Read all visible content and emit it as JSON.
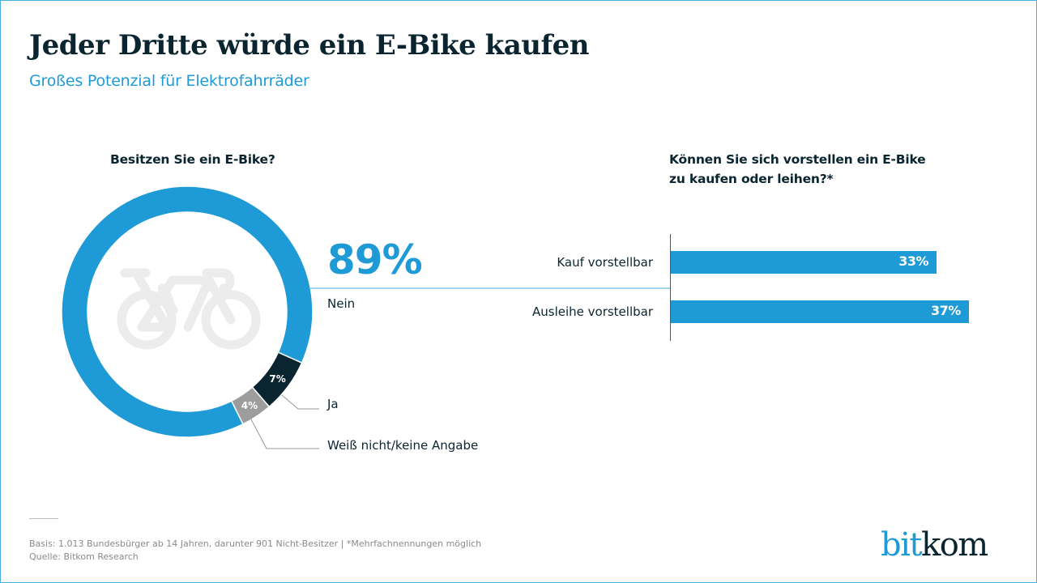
{
  "header": {
    "title": "Jeder Dritte würde ein E-Bike kaufen",
    "subtitle": "Großes Potenzial für Elektrofahrräder"
  },
  "colors": {
    "accent": "#1e9ad6",
    "dark": "#0b2530",
    "gray": "#9d9d9d",
    "icon": "#ececec"
  },
  "chart_data": [
    {
      "type": "pie",
      "variant": "donut",
      "title": "Besitzen Sie ein E-Bike?",
      "center_icon": "bicycle-icon",
      "slices": [
        {
          "label": "Nein",
          "value": 89,
          "display": "89%",
          "color": "#1e9ad6"
        },
        {
          "label": "Ja",
          "value": 7,
          "display": "7%",
          "color": "#0b2530"
        },
        {
          "label": "Weiß nicht/keine Angabe",
          "value": 4,
          "display": "4%",
          "color": "#9d9d9d"
        }
      ]
    },
    {
      "type": "bar",
      "orientation": "horizontal",
      "title": "Können Sie sich vorstellen ein E-Bike zu kaufen oder leihen?*",
      "title_lines": [
        "Können Sie sich vorstellen ein E-Bike",
        "zu kaufen oder leihen?*"
      ],
      "categories": [
        "Kauf vorstellbar",
        "Ausleihe vorstellbar"
      ],
      "values": [
        33,
        37
      ],
      "value_labels": [
        "33%",
        "37%"
      ],
      "unit": "%",
      "xlim": [
        0,
        100
      ],
      "grid": false
    }
  ],
  "footer": {
    "basis": "Basis: 1.013 Bundesbürger ab 14 Jahren, darunter 901 Nicht-Besitzer  |  *Mehrfachnennungen möglich",
    "source": "Quelle: Bitkom Research"
  },
  "logo": {
    "part1": "bit",
    "part2": "kom"
  }
}
